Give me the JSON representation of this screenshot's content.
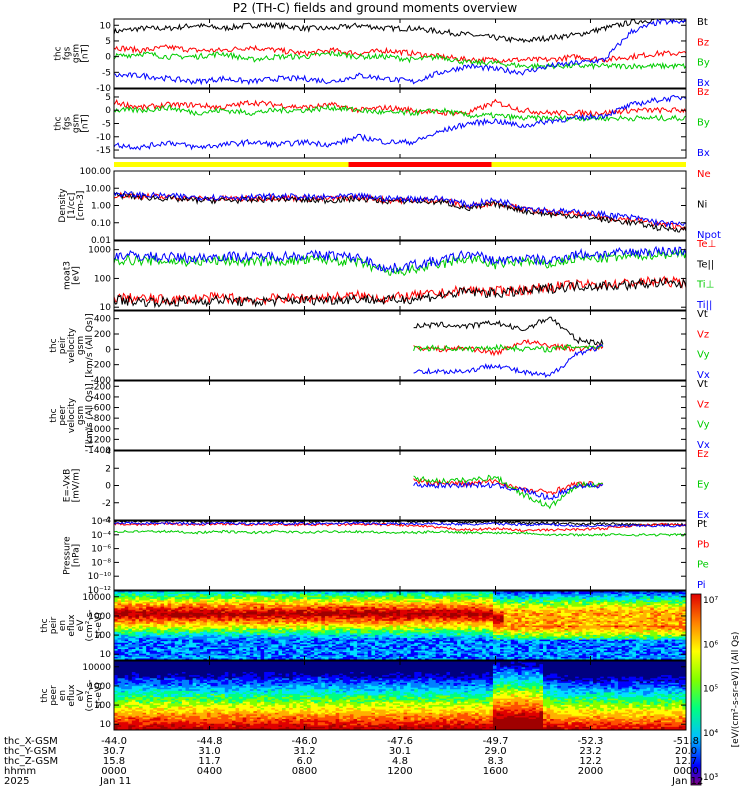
{
  "title": "P2 (TH-C) fields and ground moments overview",
  "chart_data": [
    {
      "type": "line",
      "panel": "fgs_gsm",
      "ylabel": [
        "thc",
        "fgs",
        "gsm",
        "[nT]"
      ],
      "ylim": [
        -10,
        12
      ],
      "yticks": [
        "10",
        "5",
        "0",
        "-5",
        "-10"
      ],
      "ytick_values": [
        10,
        5,
        0,
        -5,
        -10
      ],
      "series": [
        {
          "name": "Bt",
          "color": "#000000",
          "values": [
            8,
            9,
            9,
            10,
            9,
            10,
            10,
            9,
            9,
            10,
            9,
            9,
            8,
            7,
            6,
            5,
            6,
            7,
            9,
            11,
            12,
            12
          ]
        },
        {
          "name": "Bz",
          "color": "#ff0000",
          "values": [
            3,
            2,
            3,
            2,
            2,
            3,
            2,
            1,
            2,
            1,
            2,
            1,
            0,
            -1,
            -1,
            -1,
            -1,
            0,
            -1,
            0,
            1,
            1
          ]
        },
        {
          "name": "By",
          "color": "#00cc00",
          "values": [
            0,
            1,
            0,
            0,
            1,
            -1,
            0,
            0,
            1,
            0,
            0,
            -1,
            0,
            -2,
            -2,
            -3,
            -3,
            -3,
            -3,
            -3,
            -3,
            -3
          ]
        },
        {
          "name": "Bx",
          "color": "#0000ff",
          "values": [
            -6,
            -6,
            -7,
            -8,
            -7,
            -8,
            -7,
            -7,
            -8,
            -6,
            -7,
            -8,
            -5,
            -3,
            -4,
            -5,
            -3,
            -2,
            -1,
            8,
            11,
            11
          ]
        }
      ]
    },
    {
      "type": "line",
      "panel": "fgs_gsm_zoom",
      "ylabel": [
        "thc",
        "fgs",
        "gsm",
        "[nT]"
      ],
      "ylim": [
        -18,
        8
      ],
      "yticks": [
        "5",
        "0",
        "-5",
        "-10",
        "-15"
      ],
      "ytick_values": [
        5,
        0,
        -5,
        -10,
        -15
      ],
      "series": [
        {
          "name": "Bz",
          "color": "#ff0000",
          "values": [
            3,
            1,
            2,
            2,
            1,
            3,
            2,
            1,
            2,
            0,
            1,
            0,
            -1,
            -1,
            3,
            0,
            -1,
            -1,
            -1,
            0,
            0,
            0
          ]
        },
        {
          "name": "By",
          "color": "#00cc00",
          "values": [
            0,
            0,
            1,
            -1,
            0,
            -1,
            0,
            0,
            1,
            0,
            -1,
            -1,
            0,
            -2,
            -2,
            -3,
            -3,
            -3,
            -3,
            -3,
            -3,
            -3
          ]
        },
        {
          "name": "Bx",
          "color": "#0000ff",
          "values": [
            -13,
            -14,
            -12,
            -14,
            -13,
            -12,
            -13,
            -12,
            -13,
            -10,
            -12,
            -12,
            -8,
            -5,
            -4,
            -6,
            -4,
            -3,
            -2,
            2,
            4,
            5
          ]
        }
      ]
    },
    {
      "type": "line",
      "panel": "density",
      "ylabel": [
        "Density",
        "[1/cc]",
        "[cm-3]"
      ],
      "log": true,
      "ylim": [
        0.01,
        100
      ],
      "yticks": [
        "100.00",
        "10.00",
        "1.00",
        "0.10",
        "0.01"
      ],
      "ytick_values": [
        100,
        10,
        1,
        0.1,
        0.01
      ],
      "series": [
        {
          "name": "Ne",
          "color": "#ff0000",
          "values": [
            4,
            3.5,
            3,
            2.5,
            2.5,
            2.5,
            3,
            2.5,
            2.5,
            3,
            2,
            2,
            2,
            0.8,
            1.5,
            0.6,
            0.4,
            0.3,
            0.2,
            0.15,
            0.08,
            0.06
          ]
        },
        {
          "name": "Ni",
          "color": "#000000",
          "values": [
            4,
            3,
            2.5,
            2,
            2,
            2,
            2.5,
            2,
            2,
            2.5,
            1.8,
            1.8,
            1.6,
            0.6,
            1.2,
            0.5,
            0.3,
            0.25,
            0.15,
            0.1,
            0.05,
            0.04
          ]
        },
        {
          "name": "Npot",
          "color": "#0000ff",
          "values": [
            5,
            4,
            3.5,
            3,
            3,
            3,
            3.5,
            3,
            3,
            3.5,
            2.5,
            2.5,
            2.5,
            1,
            2,
            0.8,
            0.5,
            0.4,
            0.3,
            0.2,
            0.1,
            0.07
          ]
        }
      ]
    },
    {
      "type": "line",
      "panel": "temperature",
      "ylabel": [
        "moat3",
        "[eV]"
      ],
      "log": true,
      "ylim": [
        8,
        2000
      ],
      "yticks": [
        "1000",
        "100",
        "10"
      ],
      "ytick_values": [
        1000,
        100,
        10
      ],
      "series": [
        {
          "name": "Te⊥",
          "color": "#ff0000",
          "values": [
            22,
            20,
            18,
            20,
            22,
            18,
            20,
            21,
            22,
            25,
            20,
            25,
            30,
            40,
            35,
            40,
            50,
            60,
            60,
            70,
            80,
            70
          ]
        },
        {
          "name": "Te||",
          "color": "#000000",
          "values": [
            18,
            16,
            15,
            16,
            18,
            15,
            17,
            18,
            18,
            20,
            17,
            20,
            25,
            35,
            30,
            35,
            45,
            55,
            55,
            60,
            70,
            60
          ]
        },
        {
          "name": "Ti⊥",
          "color": "#00cc00",
          "values": [
            450,
            420,
            400,
            380,
            420,
            380,
            400,
            420,
            450,
            350,
            150,
            200,
            300,
            500,
            300,
            400,
            300,
            500,
            500,
            600,
            700,
            700
          ]
        },
        {
          "name": "Ti||",
          "color": "#0000ff",
          "values": [
            650,
            600,
            550,
            500,
            600,
            550,
            600,
            620,
            650,
            500,
            200,
            300,
            400,
            700,
            400,
            500,
            400,
            700,
            700,
            800,
            900,
            900
          ]
        }
      ]
    },
    {
      "type": "line",
      "panel": "peir_velocity",
      "ylabel": [
        "thc",
        "peir",
        "velocity",
        "gsm",
        "[km/s (All Qs)]"
      ],
      "ylim": [
        -400,
        500
      ],
      "yticks": [
        "400",
        "200",
        "0",
        "-200",
        "-400"
      ],
      "ytick_values": [
        400,
        200,
        0,
        -200,
        -400
      ],
      "series": [
        {
          "name": "Vt",
          "color": "#000000",
          "values": [
            null,
            null,
            null,
            null,
            null,
            null,
            null,
            null,
            null,
            null,
            null,
            300,
            320,
            300,
            350,
            250,
            420,
            120,
            80,
            null,
            null,
            null
          ]
        },
        {
          "name": "Vz",
          "color": "#ff0000",
          "values": [
            null,
            null,
            null,
            null,
            null,
            null,
            null,
            null,
            null,
            null,
            null,
            30,
            0,
            20,
            -50,
            100,
            50,
            0,
            30,
            null,
            null,
            null
          ]
        },
        {
          "name": "Vy",
          "color": "#00cc00",
          "values": [
            null,
            null,
            null,
            null,
            null,
            null,
            null,
            null,
            null,
            null,
            null,
            10,
            20,
            0,
            30,
            10,
            0,
            40,
            30,
            null,
            null,
            null
          ]
        },
        {
          "name": "Vx",
          "color": "#0000ff",
          "values": [
            null,
            null,
            null,
            null,
            null,
            null,
            null,
            null,
            null,
            null,
            null,
            -280,
            -290,
            -280,
            -200,
            -300,
            -350,
            -50,
            40,
            null,
            null,
            null
          ]
        }
      ]
    },
    {
      "type": "line",
      "panel": "peer_velocity",
      "ylabel": [
        "thc",
        "peer",
        "velocity",
        "gsm",
        "[km/s (All Qs)]"
      ],
      "ylim": [
        -1400,
        -100
      ],
      "yticks": [
        "-200",
        "-400",
        "-600",
        "-800",
        "-1000",
        "-1200",
        "-1400"
      ],
      "ytick_values": [
        -200,
        -400,
        -600,
        -800,
        -1000,
        -1200,
        -1400
      ],
      "series": [
        {
          "name": "Vt",
          "color": "#000000",
          "values": []
        },
        {
          "name": "Vz",
          "color": "#ff0000",
          "values": []
        },
        {
          "name": "Vy",
          "color": "#00cc00",
          "values": []
        },
        {
          "name": "Vx",
          "color": "#0000ff",
          "values": []
        }
      ]
    },
    {
      "type": "line",
      "panel": "e_field",
      "ylabel": [
        "E=-VxB",
        "[mV/m]"
      ],
      "ylim": [
        -4,
        4
      ],
      "yticks": [
        "4",
        "2",
        "0",
        "-2",
        "-4"
      ],
      "ytick_values": [
        4,
        2,
        0,
        -2,
        -4
      ],
      "series": [
        {
          "name": "Ez",
          "color": "#ff0000",
          "values": [
            null,
            null,
            null,
            null,
            null,
            null,
            null,
            null,
            null,
            null,
            null,
            0.5,
            0.3,
            0.2,
            0.5,
            -0.5,
            -0.8,
            0.2,
            0.1,
            null,
            null,
            null
          ]
        },
        {
          "name": "Ey",
          "color": "#00cc00",
          "values": [
            null,
            null,
            null,
            null,
            null,
            null,
            null,
            null,
            null,
            null,
            null,
            0.8,
            0.5,
            0.6,
            1.0,
            -1.0,
            -2.5,
            0.0,
            0.2,
            null,
            null,
            null
          ]
        },
        {
          "name": "Ex",
          "color": "#0000ff",
          "values": [
            null,
            null,
            null,
            null,
            null,
            null,
            null,
            null,
            null,
            null,
            null,
            0.1,
            0.0,
            0.1,
            0.0,
            -0.5,
            -1.5,
            0.0,
            0.0,
            null,
            null,
            null
          ]
        }
      ]
    },
    {
      "type": "line",
      "panel": "pressure",
      "ylabel": [
        "Pressure",
        "[nPa]"
      ],
      "log": true,
      "ylim": [
        1e-12,
        0.01
      ],
      "yticks": [
        "10⁻²",
        "10⁻⁴",
        "10⁻⁶",
        "10⁻⁸",
        "10⁻¹⁰",
        "10⁻¹²"
      ],
      "ytick_values": [
        0.01,
        0.0001,
        1e-06,
        1e-08,
        1e-10,
        1e-12
      ],
      "series": [
        {
          "name": "Pt",
          "color": "#000000",
          "values": [
            0.01,
            0.01,
            0.01,
            0.009,
            0.01,
            0.009,
            0.01,
            0.009,
            0.01,
            0.01,
            0.009,
            0.008,
            0.01,
            0.006,
            0.008,
            0.005,
            0.005,
            0.004,
            0.004,
            0.003,
            0.003,
            0.003
          ]
        },
        {
          "name": "Pb",
          "color": "#ff0000",
          "values": [
            0.004,
            0.003,
            0.004,
            0.003,
            0.004,
            0.003,
            0.003,
            0.003,
            0.003,
            0.003,
            0.003,
            0.002,
            0.001,
            0.0005,
            0.0008,
            0.0004,
            0.0005,
            0.0006,
            0.0008,
            0.002,
            0.003,
            0.003
          ]
        },
        {
          "name": "Pe",
          "color": "#00cc00",
          "values": [
            0.0003,
            0.0003,
            0.0003,
            0.0002,
            0.0003,
            0.0002,
            0.0003,
            0.0002,
            0.0003,
            0.0003,
            0.0002,
            0.0002,
            0.0003,
            0.0002,
            0.0002,
            0.0002,
            0.0001,
            0.0001,
            0.0001,
            0.0001,
            0.0001,
            0.0001
          ]
        },
        {
          "name": "Pi",
          "color": "#0000ff",
          "values": [
            0.005,
            0.005,
            0.005,
            0.004,
            0.005,
            0.004,
            0.005,
            0.004,
            0.005,
            0.005,
            0.004,
            0.004,
            0.004,
            0.003,
            0.004,
            0.003,
            0.003,
            0.002,
            0.002,
            0.002,
            0.002,
            0.002
          ]
        }
      ]
    },
    {
      "type": "heatmap",
      "panel": "peir_eflux",
      "ylabel": [
        "thc",
        "peir",
        "en",
        "eflux",
        "eV",
        "(cm²-s-",
        "sr-eV)"
      ],
      "log": true,
      "ylim": [
        5,
        20000
      ],
      "yticks": [
        "10000",
        "1000",
        "100",
        "10"
      ],
      "ytick_values": [
        10000,
        1000,
        100,
        10
      ]
    },
    {
      "type": "heatmap",
      "panel": "peer_eflux",
      "ylabel": [
        "thc",
        "peer",
        "en",
        "eflux",
        "eV",
        "(cm²-s-",
        "sr-eV)"
      ],
      "log": true,
      "ylim": [
        5,
        20000
      ],
      "yticks": [
        "10000",
        "1000",
        "100",
        "10"
      ],
      "ytick_values": [
        10000,
        1000,
        100,
        10
      ]
    }
  ],
  "colorbar": {
    "label": "[eV/(cm²-s-sr-eV)] (All Qs)",
    "ticks": [
      "10⁷",
      "10⁶",
      "10⁵",
      "10⁴",
      "10³"
    ]
  },
  "mode_bar": [
    {
      "color": "#ffff00",
      "from": 0.0,
      "to": 0.41
    },
    {
      "color": "#ff0000",
      "from": 0.41,
      "to": 0.66
    },
    {
      "color": "#ffff00",
      "from": 0.66,
      "to": 1.0
    }
  ],
  "x_axis": {
    "row_labels": [
      "thc_X-GSM",
      "thc_Y-GSM",
      "thc_Z-GSM",
      "hhmm",
      "2025"
    ],
    "positions": [
      {
        "values": [
          "-44.0",
          "30.7",
          "15.8",
          "0000",
          "Jan 11"
        ]
      },
      {
        "values": [
          "-44.8",
          "31.0",
          "11.7",
          "0400",
          ""
        ]
      },
      {
        "values": [
          "-46.0",
          "31.2",
          "6.0",
          "0800",
          ""
        ]
      },
      {
        "values": [
          "-47.6",
          "30.1",
          "4.8",
          "1200",
          ""
        ]
      },
      {
        "values": [
          "-49.7",
          "29.0",
          "8.3",
          "1600",
          ""
        ]
      },
      {
        "values": [
          "-52.3",
          "23.2",
          "12.2",
          "2000",
          ""
        ]
      },
      {
        "values": [
          "-51.8",
          "20.0",
          "12.7",
          "0000",
          "Jan 12"
        ]
      }
    ]
  }
}
